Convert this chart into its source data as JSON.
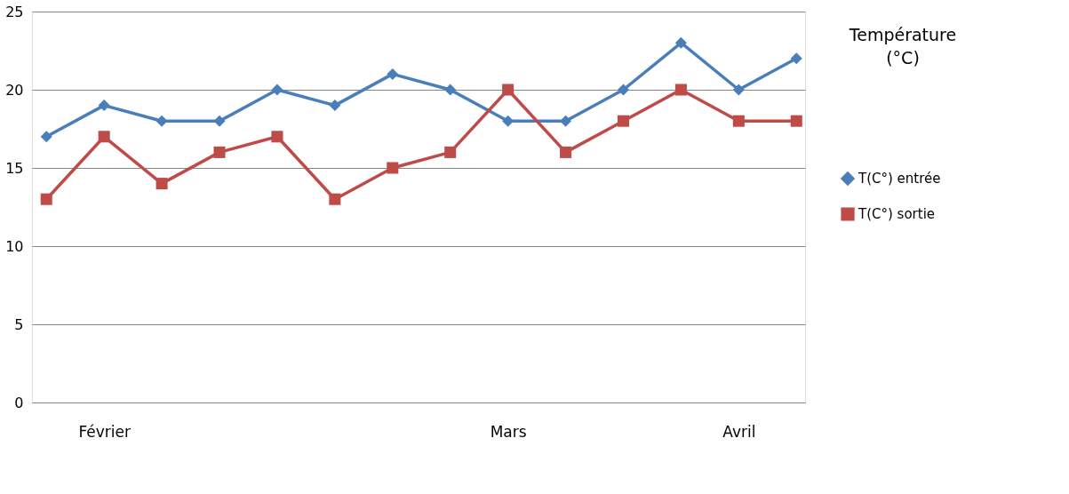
{
  "chart_data": {
    "type": "line",
    "title": "Température (°C)",
    "categories": [
      null,
      "Février",
      null,
      null,
      null,
      null,
      null,
      null,
      "Mars",
      null,
      null,
      null,
      "Avril",
      null
    ],
    "series": [
      {
        "name": "T(C°) entrée",
        "color": "#4a7ebb",
        "marker": "diamond",
        "values": [
          17,
          19,
          18,
          18,
          20,
          19,
          21,
          20,
          18,
          18,
          20,
          23,
          20,
          22
        ]
      },
      {
        "name": "T(C°) sortie",
        "color": "#be4b48",
        "marker": "square",
        "values": [
          13,
          17,
          14,
          16,
          17,
          13,
          15,
          16,
          20,
          16,
          18,
          20,
          18,
          18
        ]
      }
    ],
    "ylim": [
      0,
      25
    ],
    "yticks": [
      0,
      5,
      10,
      15,
      20,
      25
    ],
    "grid": "y",
    "legend": "right",
    "line_style": "solid"
  }
}
